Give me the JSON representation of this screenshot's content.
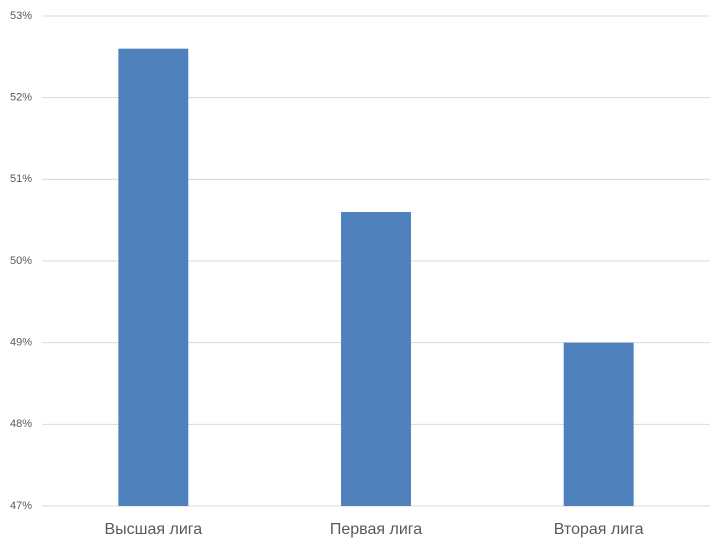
{
  "chart_data": {
    "type": "bar",
    "categories": [
      "Высшая лига",
      "Первая лига",
      "Вторая лига"
    ],
    "values": [
      52.6,
      50.6,
      49.0
    ],
    "color": "#4f81bd",
    "ylim": [
      47,
      53
    ],
    "yticks": [
      {
        "value": 47,
        "label": "47%"
      },
      {
        "value": 48,
        "label": "48%"
      },
      {
        "value": 49,
        "label": "49%"
      },
      {
        "value": 50,
        "label": "50%"
      },
      {
        "value": 51,
        "label": "51%"
      },
      {
        "value": 52,
        "label": "52%"
      },
      {
        "value": 53,
        "label": "53%"
      }
    ],
    "grid": true
  }
}
